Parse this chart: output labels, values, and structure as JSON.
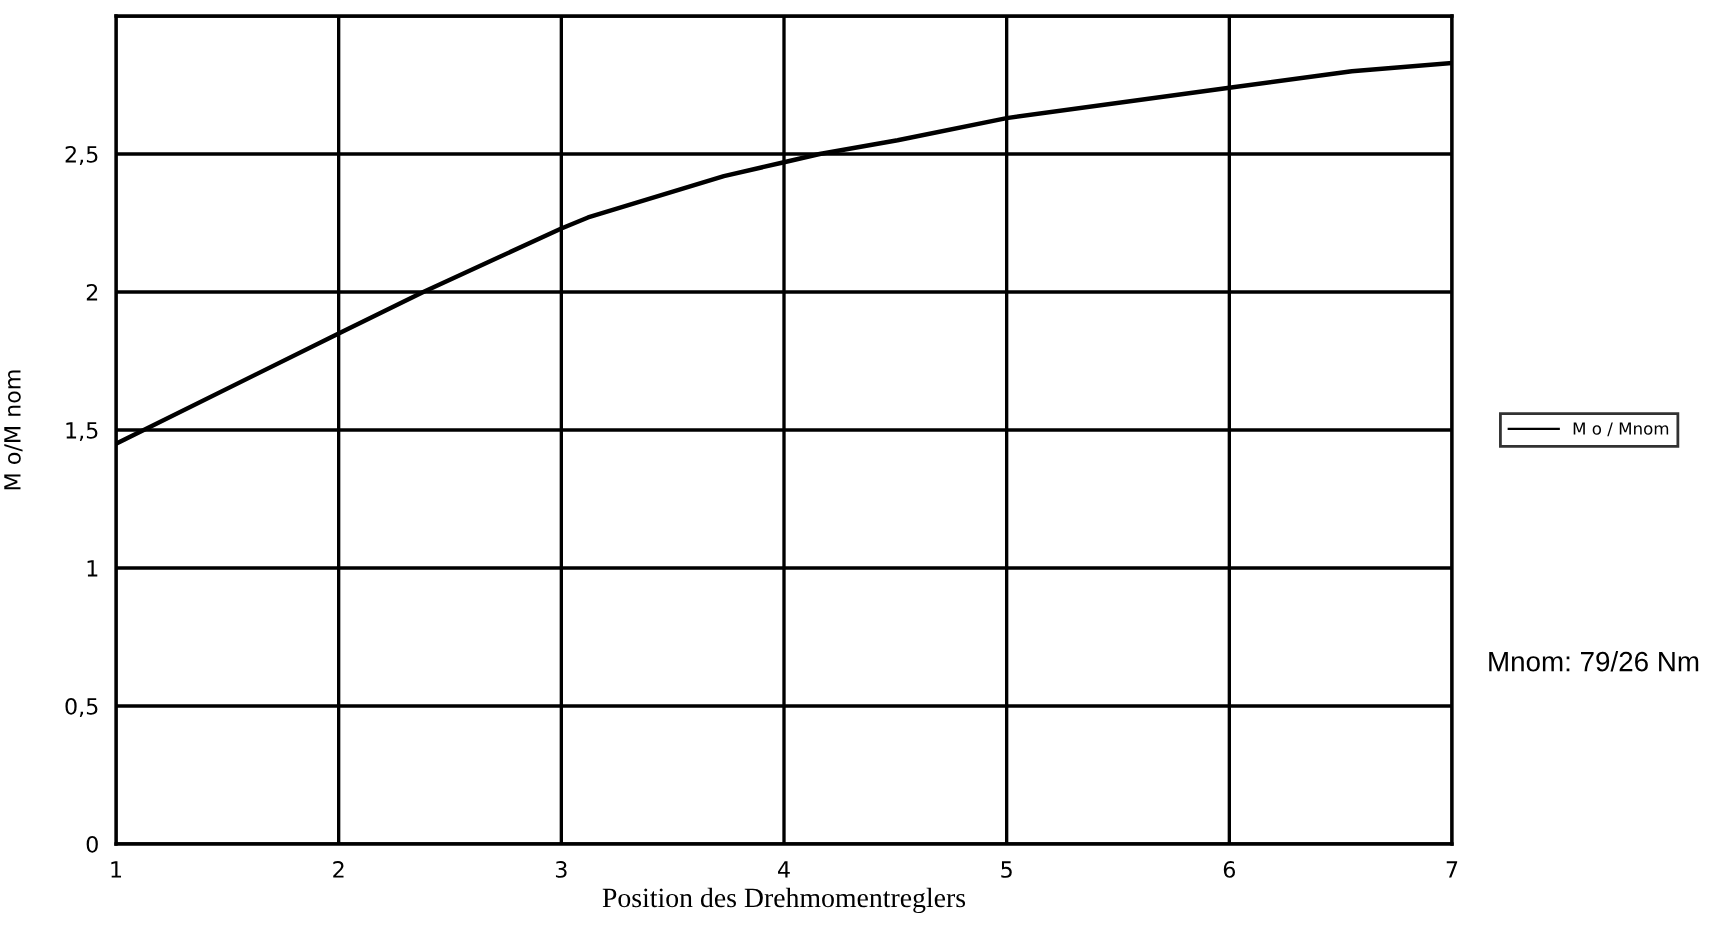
{
  "chart_data": {
    "type": "line",
    "xlabel": "Position des Drehmomentreglers",
    "ylabel": "M o/M nom",
    "x": [
      1,
      2,
      2.38,
      3,
      3.12,
      3.73,
      4,
      4.16,
      4.51,
      5,
      6,
      6.55,
      7
    ],
    "series": [
      {
        "name": "M o / Mnom",
        "color": "#000000",
        "values": [
          1.45,
          1.85,
          2.0,
          2.23,
          2.27,
          2.42,
          2.47,
          2.5,
          2.55,
          2.63,
          2.74,
          2.8,
          2.83
        ]
      }
    ],
    "xlim": [
      1,
      7
    ],
    "xticks": [
      1,
      2,
      3,
      4,
      5,
      6,
      7
    ],
    "ylim": [
      0,
      3
    ],
    "yticks": [
      0,
      {
        "value": 0.5,
        "label": "0,5"
      },
      1,
      {
        "value": 1.5,
        "label": "1,5"
      },
      2,
      {
        "value": 2.5,
        "label": "2,5"
      },
      {
        "value": 3,
        "label": null
      }
    ],
    "grid": true,
    "legend": "right",
    "marker": "none",
    "line_style": "solid",
    "annotations": [
      "Mnom: 79/26 Nm"
    ]
  }
}
